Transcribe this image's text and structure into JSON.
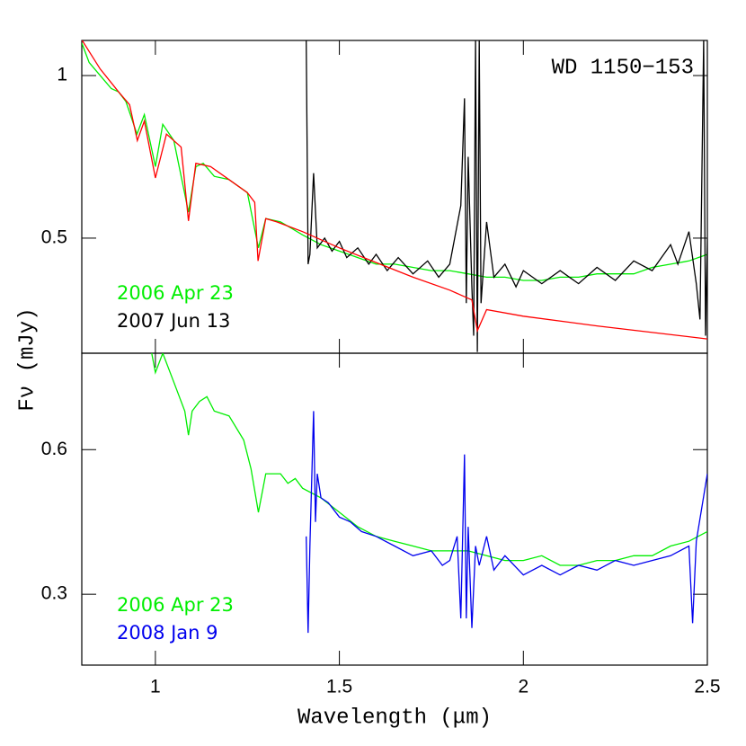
{
  "ylabel": "Fν (mJy)",
  "chart_data": [
    {
      "type": "line",
      "title": "WD 1150−153",
      "xlim": [
        0.8,
        2.5
      ],
      "xticks": [
        1,
        1.5,
        2,
        2.5
      ],
      "xtick_labels": false,
      "ylim": [
        0.146,
        1.108
      ],
      "yticks": [
        0.5,
        1
      ],
      "legend": "lower left",
      "series": [
        {
          "name": "2006 Apr 23",
          "color": "#00ee00",
          "x": [
            0.8,
            0.82,
            0.85,
            0.88,
            0.9,
            0.92,
            0.95,
            0.97,
            1.0,
            1.02,
            1.05,
            1.09,
            1.11,
            1.13,
            1.16,
            1.2,
            1.25,
            1.28,
            1.3,
            1.34,
            1.37,
            1.4,
            1.45,
            1.5,
            1.55,
            1.6,
            1.65,
            1.7,
            1.75,
            1.8,
            1.85,
            1.9,
            1.95,
            2.0,
            2.05,
            2.1,
            2.15,
            2.2,
            2.25,
            2.3,
            2.35,
            2.4,
            2.45,
            2.5
          ],
          "values": [
            1.1,
            1.04,
            1.0,
            0.96,
            0.95,
            0.92,
            0.82,
            0.88,
            0.72,
            0.85,
            0.8,
            0.58,
            0.72,
            0.73,
            0.69,
            0.68,
            0.64,
            0.47,
            0.56,
            0.55,
            0.53,
            0.51,
            0.48,
            0.46,
            0.44,
            0.42,
            0.42,
            0.41,
            0.4,
            0.4,
            0.39,
            0.38,
            0.38,
            0.37,
            0.37,
            0.38,
            0.38,
            0.39,
            0.39,
            0.39,
            0.41,
            0.42,
            0.43,
            0.45
          ]
        },
        {
          "name": "2007 Jun 13",
          "color": "#000000",
          "x": [
            1.41,
            1.415,
            1.42,
            1.43,
            1.44,
            1.46,
            1.48,
            1.5,
            1.52,
            1.55,
            1.58,
            1.6,
            1.63,
            1.66,
            1.7,
            1.74,
            1.77,
            1.8,
            1.83,
            1.84,
            1.845,
            1.85,
            1.86,
            1.865,
            1.87,
            1.875,
            1.88,
            1.885,
            1.9,
            1.92,
            1.95,
            1.98,
            2.0,
            2.05,
            2.1,
            2.15,
            2.2,
            2.25,
            2.3,
            2.35,
            2.4,
            2.42,
            2.45,
            2.47,
            2.48,
            2.49,
            2.495,
            2.5
          ],
          "values": [
            1.11,
            0.42,
            0.45,
            0.7,
            0.47,
            0.5,
            0.46,
            0.49,
            0.44,
            0.47,
            0.42,
            0.45,
            0.4,
            0.44,
            0.39,
            0.43,
            0.38,
            0.42,
            0.6,
            0.93,
            0.3,
            0.75,
            0.35,
            0.2,
            1.11,
            0.15,
            1.11,
            0.3,
            0.55,
            0.38,
            0.42,
            0.35,
            0.4,
            0.36,
            0.4,
            0.36,
            0.41,
            0.37,
            0.43,
            0.4,
            0.48,
            0.42,
            0.52,
            0.36,
            0.25,
            1.11,
            0.2,
            0.5
          ]
        },
        {
          "color": "#ff0000",
          "x": [
            0.8,
            0.85,
            0.9,
            0.93,
            0.951,
            0.97,
            1.0,
            1.03,
            1.07,
            1.09,
            1.11,
            1.15,
            1.2,
            1.25,
            1.27,
            1.279,
            1.3,
            1.33,
            1.4,
            1.5,
            1.6,
            1.7,
            1.8,
            1.86,
            1.875,
            1.9,
            2.0,
            2.2,
            2.5
          ],
          "values": [
            1.11,
            1.02,
            0.95,
            0.91,
            0.8,
            0.86,
            0.685,
            0.82,
            0.78,
            0.553,
            0.73,
            0.72,
            0.68,
            0.64,
            0.61,
            0.43,
            0.56,
            0.55,
            0.52,
            0.47,
            0.425,
            0.38,
            0.34,
            0.31,
            0.215,
            0.28,
            0.26,
            0.23,
            0.19
          ]
        }
      ]
    },
    {
      "type": "line",
      "xlabel": "Wavelength (μm)",
      "xlim": [
        0.8,
        2.5
      ],
      "xticks": [
        1,
        1.5,
        2,
        2.5
      ],
      "xtick_labels": true,
      "ylim": [
        0.153,
        0.8
      ],
      "yticks": [
        0.3,
        0.6
      ],
      "legend": "lower left",
      "series": [
        {
          "name": "2006 Apr 23",
          "color": "#00ee00",
          "x": [
            0.99,
            1.0,
            1.02,
            1.05,
            1.08,
            1.09,
            1.1,
            1.12,
            1.14,
            1.16,
            1.2,
            1.24,
            1.26,
            1.28,
            1.3,
            1.34,
            1.36,
            1.38,
            1.4,
            1.45,
            1.5,
            1.55,
            1.6,
            1.65,
            1.7,
            1.75,
            1.8,
            1.85,
            1.9,
            1.95,
            2.0,
            2.05,
            2.1,
            2.15,
            2.2,
            2.25,
            2.3,
            2.35,
            2.4,
            2.45,
            2.5
          ],
          "values": [
            0.8,
            0.76,
            0.8,
            0.74,
            0.68,
            0.63,
            0.68,
            0.7,
            0.71,
            0.68,
            0.67,
            0.62,
            0.56,
            0.47,
            0.55,
            0.55,
            0.53,
            0.54,
            0.52,
            0.5,
            0.47,
            0.44,
            0.42,
            0.41,
            0.4,
            0.39,
            0.39,
            0.39,
            0.38,
            0.37,
            0.37,
            0.38,
            0.36,
            0.36,
            0.37,
            0.37,
            0.38,
            0.38,
            0.4,
            0.41,
            0.43
          ]
        },
        {
          "name": "2008 Jan 9",
          "color": "#0000ee",
          "x": [
            1.41,
            1.415,
            1.42,
            1.43,
            1.435,
            1.44,
            1.45,
            1.47,
            1.5,
            1.53,
            1.56,
            1.6,
            1.65,
            1.7,
            1.75,
            1.78,
            1.8,
            1.82,
            1.83,
            1.84,
            1.845,
            1.85,
            1.86,
            1.87,
            1.88,
            1.9,
            1.92,
            1.95,
            2.0,
            2.05,
            2.1,
            2.15,
            2.2,
            2.25,
            2.3,
            2.35,
            2.4,
            2.45,
            2.46,
            2.47,
            2.5
          ],
          "values": [
            0.42,
            0.22,
            0.4,
            0.68,
            0.45,
            0.55,
            0.5,
            0.49,
            0.46,
            0.45,
            0.43,
            0.42,
            0.4,
            0.38,
            0.39,
            0.36,
            0.37,
            0.42,
            0.25,
            0.59,
            0.25,
            0.44,
            0.23,
            0.4,
            0.36,
            0.42,
            0.35,
            0.38,
            0.34,
            0.36,
            0.34,
            0.36,
            0.35,
            0.37,
            0.36,
            0.37,
            0.38,
            0.4,
            0.24,
            0.41,
            0.55
          ]
        }
      ]
    }
  ]
}
